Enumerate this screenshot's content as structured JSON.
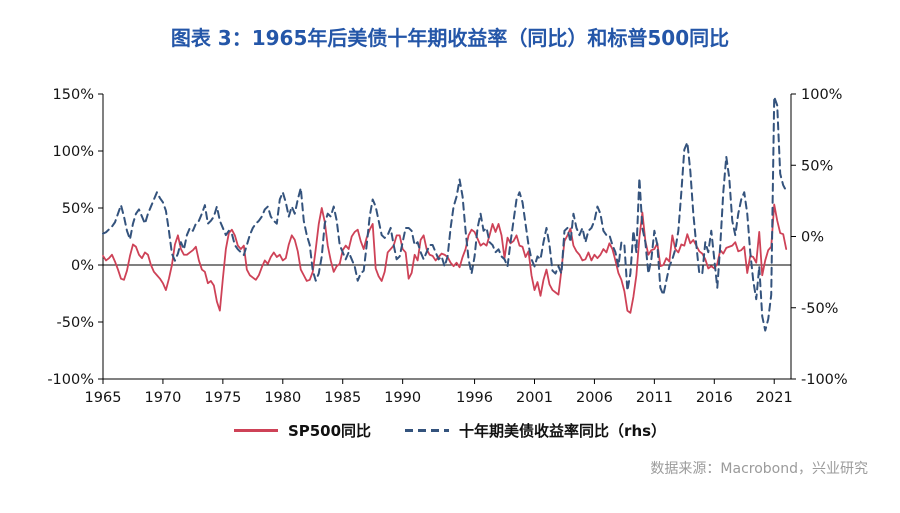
{
  "title": "图表 3：1965年后美债十年期收益率（同比）和标普500同比",
  "source": "数据来源：Macrobond，兴业研究",
  "colors": {
    "title_blue": "#2456a8",
    "sp500_red": "#ce4257",
    "bond_navy": "#34537d",
    "axis_black": "#000000",
    "source_gray": "#9b9b9b"
  },
  "legend": [
    {
      "label": "SP500同比",
      "color": "#ce4257",
      "style": "solid"
    },
    {
      "label": "十年期美债收益率同比（rhs）",
      "color": "#34537d",
      "style": "dashed"
    }
  ],
  "chart_data": {
    "type": "line",
    "title": "图表 3：1965年后美债十年期收益率（同比）和标普500同比",
    "x_start": 1965,
    "x_step": 0.25,
    "x_range": [
      1965,
      2022.4
    ],
    "x_ticks": [
      1965,
      1970,
      1975,
      1980,
      1985,
      1990,
      1996,
      2001,
      2006,
      2011,
      2016,
      2021
    ],
    "left_axis": {
      "min": -100,
      "max": 150,
      "ticks": [
        150,
        100,
        50,
        0,
        -50,
        -100
      ],
      "unit": "%"
    },
    "right_axis": {
      "min": -100,
      "max": 100,
      "ticks": [
        100,
        50,
        0,
        -50,
        -100
      ],
      "unit": "%"
    },
    "grid": false,
    "legend_position": "bottom",
    "series": [
      {
        "name": "SP500同比",
        "axis": "left",
        "color": "#ce4257",
        "dash": null,
        "width": 1.8,
        "values": [
          8,
          4,
          6,
          9,
          3,
          -4,
          -12,
          -13,
          -5,
          8,
          18,
          16,
          9,
          6,
          11,
          9,
          0,
          -6,
          -9,
          -12,
          -16,
          -22,
          -12,
          0,
          18,
          26,
          14,
          9,
          9,
          11,
          13,
          16,
          4,
          -4,
          -6,
          -16,
          -14,
          -18,
          -32,
          -40,
          -12,
          14,
          28,
          31,
          26,
          17,
          14,
          17,
          -4,
          -9,
          -11,
          -13,
          -9,
          -2,
          4,
          1,
          7,
          11,
          7,
          9,
          4,
          6,
          18,
          26,
          22,
          12,
          -4,
          -9,
          -14,
          -13,
          -6,
          14,
          36,
          50,
          38,
          17,
          4,
          -6,
          -1,
          1,
          13,
          17,
          14,
          25,
          29,
          31,
          21,
          14,
          24,
          31,
          36,
          -3,
          -10,
          -14,
          -6,
          11,
          14,
          17,
          26,
          26,
          14,
          11,
          -12,
          -7,
          9,
          4,
          22,
          26,
          14,
          9,
          8,
          4,
          7,
          10,
          9,
          7,
          2,
          -1,
          2,
          -2,
          7,
          14,
          26,
          31,
          29,
          23,
          17,
          19,
          17,
          26,
          36,
          29,
          36,
          26,
          6,
          24,
          19,
          21,
          26,
          17,
          16,
          7,
          12,
          -9,
          -22,
          -15,
          -27,
          -13,
          -4,
          -17,
          -22,
          -24,
          -26,
          -4,
          21,
          26,
          32,
          17,
          12,
          9,
          4,
          5,
          11,
          4,
          9,
          6,
          9,
          14,
          11,
          19,
          14,
          4,
          -7,
          -13,
          -23,
          -40,
          -42,
          -28,
          -9,
          24,
          46,
          21,
          9,
          13,
          14,
          19,
          -1,
          0,
          6,
          3,
          26,
          14,
          11,
          18,
          17,
          27,
          19,
          22,
          17,
          12,
          10,
          5,
          -3,
          -1,
          -3,
          1,
          13,
          10,
          15,
          16,
          17,
          20,
          12,
          13,
          16,
          -7,
          8,
          7,
          2,
          29,
          -9,
          4,
          13,
          16,
          53,
          39,
          28,
          27,
          14
        ]
      },
      {
        "name": "十年期美债收益率同比（rhs）",
        "axis": "right",
        "color": "#34537d",
        "dash": "7 5",
        "width": 2,
        "values": [
          2,
          3,
          5,
          7,
          10,
          16,
          22,
          14,
          4,
          -2,
          9,
          16,
          19,
          14,
          9,
          16,
          21,
          26,
          31,
          27,
          24,
          18,
          4,
          -12,
          -17,
          -12,
          -4,
          -9,
          1,
          6,
          4,
          9,
          11,
          16,
          22,
          9,
          11,
          14,
          21,
          11,
          6,
          1,
          4,
          2,
          -6,
          -9,
          -11,
          -13,
          -6,
          1,
          6,
          9,
          11,
          14,
          19,
          21,
          14,
          11,
          9,
          26,
          31,
          24,
          14,
          21,
          16,
          26,
          34,
          11,
          1,
          -6,
          -24,
          -31,
          -26,
          -14,
          9,
          16,
          14,
          21,
          11,
          -6,
          -11,
          -16,
          -11,
          -16,
          -21,
          -31,
          -26,
          -24,
          -6,
          14,
          26,
          21,
          11,
          1,
          -1,
          1,
          6,
          -6,
          -16,
          -14,
          -4,
          6,
          6,
          4,
          -6,
          -4,
          -11,
          -16,
          -11,
          -6,
          -6,
          -11,
          -16,
          -14,
          -21,
          -14,
          6,
          21,
          28,
          40,
          28,
          4,
          -16,
          -26,
          -14,
          6,
          16,
          4,
          6,
          -4,
          -6,
          -11,
          -9,
          -14,
          -16,
          -21,
          -4,
          11,
          26,
          31,
          24,
          9,
          -6,
          -16,
          -21,
          -14,
          -16,
          -4,
          6,
          -6,
          -24,
          -26,
          -21,
          -26,
          4,
          6,
          -4,
          16,
          6,
          1,
          6,
          -4,
          4,
          6,
          11,
          21,
          16,
          4,
          1,
          1,
          -6,
          -11,
          -21,
          -4,
          -6,
          -38,
          -26,
          4,
          -11,
          41,
          6,
          -4,
          -26,
          -16,
          4,
          -6,
          -36,
          -41,
          -31,
          -21,
          -16,
          -9,
          4,
          31,
          61,
          66,
          46,
          16,
          -6,
          -26,
          -26,
          -4,
          -11,
          4,
          -16,
          -36,
          -6,
          31,
          56,
          41,
          11,
          1,
          16,
          26,
          31,
          16,
          -11,
          -31,
          -44,
          -21,
          -56,
          -66,
          -58,
          -41,
          98,
          92,
          44,
          36,
          32
        ]
      }
    ]
  }
}
